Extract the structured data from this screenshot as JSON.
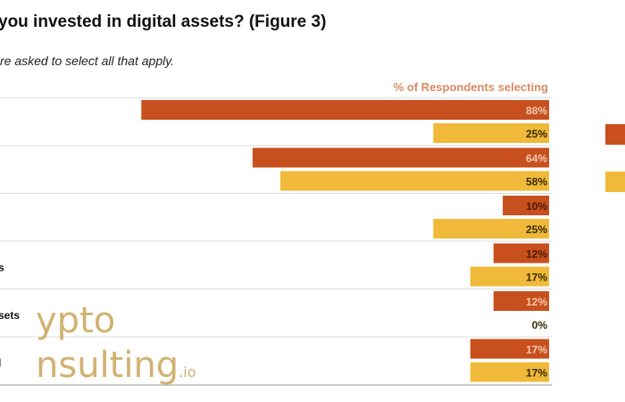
{
  "chart_data": {
    "type": "bar",
    "orientation": "horizontal",
    "title": "you invested in digital assets? (Figure 3)",
    "subtitle": "re asked to select all that apply.",
    "value_header": "% of Respondents selecting",
    "categories": [
      "",
      "",
      "",
      "s",
      "sets",
      "l"
    ],
    "series": [
      {
        "color": "#c8501e",
        "values": [
          88,
          64,
          10,
          12,
          12,
          17
        ]
      },
      {
        "color": "#f0b93a",
        "values": [
          25,
          58,
          25,
          17,
          0,
          17
        ]
      }
    ],
    "value_labels": [
      [
        "88%",
        "64%",
        "10%",
        "12%",
        "12%",
        "17%"
      ],
      [
        "25%",
        "58%",
        "25%",
        "17%",
        "0%",
        "17%"
      ]
    ],
    "xlim": [
      0,
      100
    ],
    "grid": false
  },
  "watermark": {
    "line1": "ypto",
    "line2": "nsulting",
    "suffix": ".io",
    "color": "#c9a55a"
  }
}
